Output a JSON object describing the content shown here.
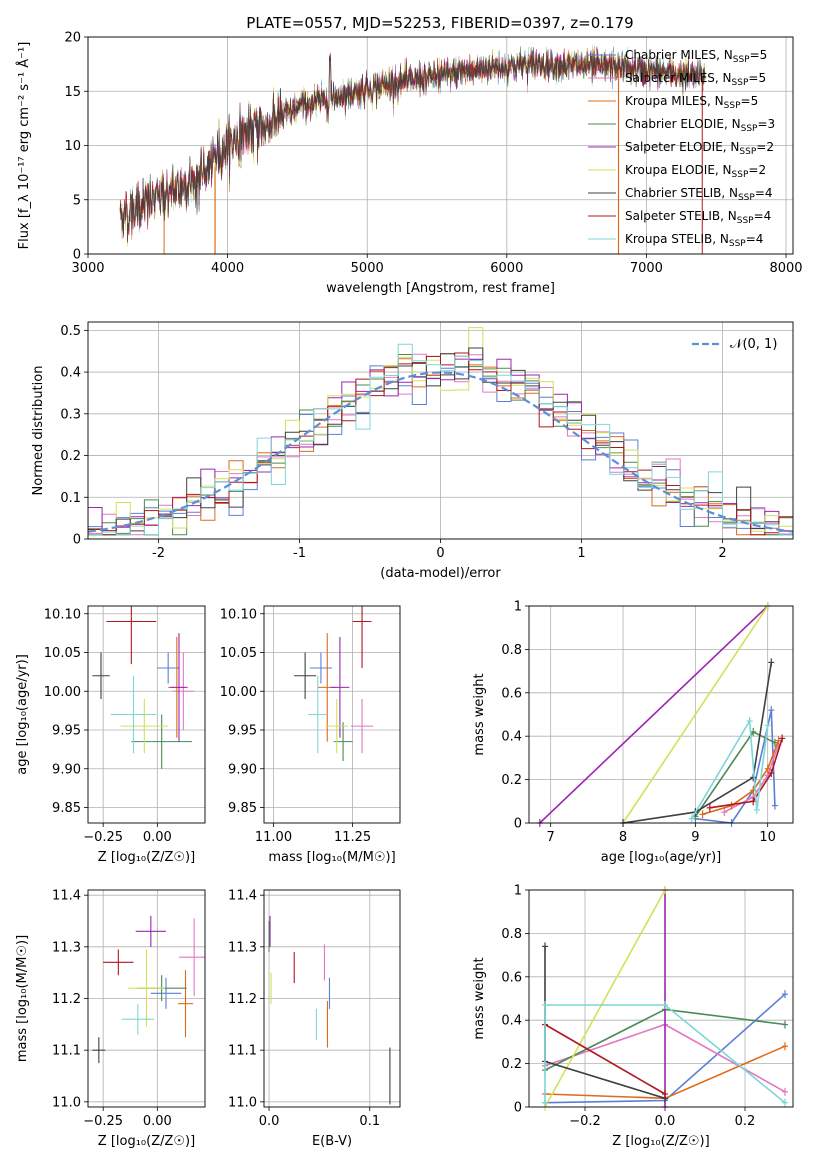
{
  "figure_title": "PLATE=0557, MJD=52253, FIBERID=0397, z=0.179",
  "colors": [
    "#5b7fd6",
    "#e377c2",
    "#dd6b1a",
    "#4a8a55",
    "#9b27b0",
    "#d4e157",
    "#404040",
    "#b0171f",
    "#7fd6d6"
  ],
  "chart_data": [
    {
      "id": "spectrum",
      "type": "line",
      "title": "PLATE=0557, MJD=52253, FIBERID=0397, z=0.179",
      "xlabel": "wavelength [Angstrom, rest frame]",
      "ylabel": "Flux [f_λ 10⁻¹⁷ erg cm⁻² s⁻¹ Å⁻¹]",
      "xlim": [
        3000,
        8050
      ],
      "ylim": [
        0,
        20
      ],
      "xticks": [
        3000,
        4000,
        5000,
        6000,
        7000,
        8000
      ],
      "yticks": [
        0,
        5,
        10,
        15,
        20
      ],
      "grid": true,
      "legend_position": "right",
      "data_range": [
        3230,
        7420
      ],
      "continuum_knots": [
        [
          3230,
          3.5
        ],
        [
          3400,
          4.5
        ],
        [
          3600,
          5.8
        ],
        [
          3800,
          7.0
        ],
        [
          3950,
          9.5
        ],
        [
          4100,
          11.0
        ],
        [
          4300,
          12.0
        ],
        [
          4500,
          13.5
        ],
        [
          4800,
          14.5
        ],
        [
          5000,
          15.2
        ],
        [
          5300,
          16.0
        ],
        [
          5600,
          16.6
        ],
        [
          5900,
          17.2
        ],
        [
          6200,
          17.5
        ],
        [
          6500,
          17.4
        ],
        [
          6800,
          17.2
        ],
        [
          7100,
          16.8
        ],
        [
          7420,
          16.3
        ]
      ],
      "series": [
        {
          "name": "Chabrier MILES, N_SSP=5",
          "label": "Chabrier MILES, N",
          "sub": "SSP",
          "tail": "=5"
        },
        {
          "name": "Salpeter MILES, N_SSP=5",
          "label": "Salpeter MILES, N",
          "sub": "SSP",
          "tail": "=5"
        },
        {
          "name": "Kroupa MILES, N_SSP=5",
          "label": "Kroupa MILES, N",
          "sub": "SSP",
          "tail": "=5"
        },
        {
          "name": "Chabrier ELODIE, N_SSP=3",
          "label": "Chabrier ELODIE, N",
          "sub": "SSP",
          "tail": "=3"
        },
        {
          "name": "Salpeter ELODIE, N_SSP=2",
          "label": "Salpeter ELODIE, N",
          "sub": "SSP",
          "tail": "=2"
        },
        {
          "name": "Kroupa ELODIE, N_SSP=2",
          "label": "Kroupa ELODIE, N",
          "sub": "SSP",
          "tail": "=2"
        },
        {
          "name": "Chabrier STELIB, N_SSP=4",
          "label": "Chabrier STELIB, N",
          "sub": "SSP",
          "tail": "=4"
        },
        {
          "name": "Salpeter STELIB, N_SSP=4",
          "label": "Salpeter STELIB, N",
          "sub": "SSP",
          "tail": "=4"
        },
        {
          "name": "Kroupa STELIB, N_SSP=4",
          "label": "Kroupa STELIB, N",
          "sub": "SSP",
          "tail": "=4"
        }
      ]
    },
    {
      "id": "residuals",
      "type": "histogram",
      "xlabel": "(data-model)/error",
      "ylabel": "Normed distribution",
      "xlim": [
        -2.5,
        2.5
      ],
      "ylim": [
        0,
        0.52
      ],
      "xticks": [
        -2,
        -1,
        0,
        1,
        2
      ],
      "yticks": [
        0.0,
        0.1,
        0.2,
        0.3,
        0.4,
        0.5
      ],
      "grid": true,
      "legend_position": "top-right",
      "reference_curve": {
        "name": "N(0,1)",
        "label": "𝒩(0, 1)",
        "mean": 0,
        "sigma": 1
      },
      "bin_width": 0.1
    },
    {
      "id": "age_vs_Z",
      "type": "errorbar",
      "xlabel": "Z [log₁₀(Z/Z☉)]",
      "ylabel": "age  [log₁₀(age/yr)]",
      "xlim": [
        -0.32,
        0.22
      ],
      "ylim": [
        9.83,
        10.11
      ],
      "xticks": [
        -0.25,
        0.0
      ],
      "xticklabels": [
        "−0.25",
        "0.00"
      ],
      "yticks": [
        9.85,
        9.9,
        9.95,
        10.0,
        10.05,
        10.1
      ],
      "yticklabels": [
        "9.85",
        "9.90",
        "9.95",
        "10.00",
        "10.05",
        "10.10"
      ],
      "grid": true,
      "points": [
        {
          "x": 0.05,
          "y": 10.03,
          "xerr": 0.1,
          "yerr": 0.04
        },
        {
          "x": 0.12,
          "y": 10.0,
          "xerr": 0.1,
          "yerr": 0.1
        },
        {
          "x": 0.09,
          "y": 10.005,
          "xerr": 0.08,
          "yerr": 0.13
        },
        {
          "x": 0.02,
          "y": 9.935,
          "xerr": 0.28,
          "yerr": 0.07
        },
        {
          "x": 0.1,
          "y": 10.005,
          "xerr": 0.08,
          "yerr": 0.14
        },
        {
          "x": -0.06,
          "y": 9.955,
          "xerr": 0.22,
          "yerr": 0.07
        },
        {
          "x": -0.26,
          "y": 10.02,
          "xerr": 0.08,
          "yerr": 0.06
        },
        {
          "x": -0.12,
          "y": 10.09,
          "xerr": 0.23,
          "yerr": 0.11
        },
        {
          "x": -0.11,
          "y": 9.97,
          "xerr": 0.21,
          "yerr": 0.1
        }
      ]
    },
    {
      "id": "age_vs_mass",
      "type": "errorbar",
      "xlabel": "mass [log₁₀(M/M☉)]",
      "ylabel": "",
      "xlim": [
        10.97,
        11.4
      ],
      "ylim": [
        9.83,
        10.11
      ],
      "xticks": [
        11.0,
        11.25
      ],
      "xticklabels": [
        "11.00",
        "11.25"
      ],
      "yticks": [
        9.85,
        9.9,
        9.95,
        10.0,
        10.05,
        10.1
      ],
      "yticklabels": [
        "9.85",
        "9.90",
        "9.95",
        "10.00",
        "10.05",
        "10.10"
      ],
      "grid": true,
      "points": [
        {
          "x": 11.15,
          "y": 10.03,
          "xerr": 0.07,
          "yerr": 0.04
        },
        {
          "x": 11.28,
          "y": 9.955,
          "xerr": 0.07,
          "yerr": 0.07
        },
        {
          "x": 11.17,
          "y": 10.005,
          "xerr": 0.06,
          "yerr": 0.14
        },
        {
          "x": 11.22,
          "y": 9.935,
          "xerr": 0.06,
          "yerr": 0.05
        },
        {
          "x": 11.21,
          "y": 10.005,
          "xerr": 0.06,
          "yerr": 0.13
        },
        {
          "x": 11.2,
          "y": 9.955,
          "xerr": 0.07,
          "yerr": 0.07
        },
        {
          "x": 11.1,
          "y": 10.02,
          "xerr": 0.07,
          "yerr": 0.06
        },
        {
          "x": 11.28,
          "y": 10.09,
          "xerr": 0.06,
          "yerr": 0.12
        },
        {
          "x": 11.14,
          "y": 9.97,
          "xerr": 0.06,
          "yerr": 0.1
        }
      ]
    },
    {
      "id": "age_mass_weight",
      "type": "line",
      "xlabel": "age  [log₁₀(age/yr)]",
      "ylabel": "mass weight",
      "xlim": [
        6.7,
        10.35
      ],
      "ylim": [
        0,
        1.0
      ],
      "xticks": [
        7,
        8,
        9,
        10
      ],
      "yticks": [
        0.0,
        0.2,
        0.4,
        0.6,
        0.8,
        1.0
      ],
      "grid": true,
      "series": [
        {
          "x": [
            9.0,
            9.5,
            9.8,
            10.05,
            10.1
          ],
          "y": [
            0.02,
            0.0,
            0.15,
            0.52,
            0.08
          ]
        },
        {
          "x": [
            9.4,
            9.8,
            10.0,
            10.15
          ],
          "y": [
            0.05,
            0.12,
            0.22,
            0.36
          ]
        },
        {
          "x": [
            9.1,
            9.5,
            9.8,
            10.0,
            10.15
          ],
          "y": [
            0.04,
            0.08,
            0.15,
            0.25,
            0.38
          ]
        },
        {
          "x": [
            9.0,
            9.8,
            10.1
          ],
          "y": [
            0.03,
            0.42,
            0.37
          ]
        },
        {
          "x": [
            6.85,
            10.0
          ],
          "y": [
            0.0,
            1.0
          ]
        },
        {
          "x": [
            8.0,
            10.0
          ],
          "y": [
            0.0,
            1.0
          ]
        },
        {
          "x": [
            8.0,
            9.0,
            9.8,
            10.05
          ],
          "y": [
            0.0,
            0.05,
            0.21,
            0.74
          ]
        },
        {
          "x": [
            9.2,
            9.8,
            10.05,
            10.2
          ],
          "y": [
            0.07,
            0.1,
            0.23,
            0.39
          ]
        },
        {
          "x": [
            8.95,
            9.75,
            9.85,
            10.0
          ],
          "y": [
            0.02,
            0.47,
            0.06,
            0.45
          ]
        }
      ]
    },
    {
      "id": "mass_vs_Z",
      "type": "errorbar",
      "xlabel": "Z [log₁₀(Z/Z☉)]",
      "ylabel": "mass [log₁₀(M/M☉)]",
      "xlim": [
        -0.32,
        0.22
      ],
      "ylim": [
        10.99,
        11.41
      ],
      "xticks": [
        -0.25,
        0.0
      ],
      "xticklabels": [
        "−0.25",
        "0.00"
      ],
      "yticks": [
        11.0,
        11.1,
        11.2,
        11.3,
        11.4
      ],
      "yticklabels": [
        "11.0",
        "11.1",
        "11.2",
        "11.3",
        "11.4"
      ],
      "grid": true,
      "points": [
        {
          "x": 0.04,
          "y": 11.21,
          "xerr": 0.14,
          "yerr": 0.06
        },
        {
          "x": 0.17,
          "y": 11.28,
          "xerr": 0.14,
          "yerr": 0.15
        },
        {
          "x": 0.13,
          "y": 11.19,
          "xerr": 0.07,
          "yerr": 0.13
        },
        {
          "x": 0.02,
          "y": 11.22,
          "xerr": 0.23,
          "yerr": 0.05
        },
        {
          "x": -0.03,
          "y": 11.33,
          "xerr": 0.14,
          "yerr": 0.06
        },
        {
          "x": -0.05,
          "y": 11.22,
          "xerr": 0.17,
          "yerr": 0.15
        },
        {
          "x": -0.27,
          "y": 11.1,
          "xerr": 0.06,
          "yerr": 0.05
        },
        {
          "x": -0.18,
          "y": 11.27,
          "xerr": 0.14,
          "yerr": 0.05
        },
        {
          "x": -0.09,
          "y": 11.16,
          "xerr": 0.15,
          "yerr": 0.06
        }
      ]
    },
    {
      "id": "mass_vs_EBV",
      "type": "errorbar",
      "xlabel": "E(B-V)",
      "ylabel": "",
      "xlim": [
        -0.005,
        0.13
      ],
      "ylim": [
        10.99,
        11.41
      ],
      "xticks": [
        0.0,
        0.1
      ],
      "xticklabels": [
        "0.0",
        "0.1"
      ],
      "yticks": [
        11.0,
        11.1,
        11.2,
        11.3,
        11.4
      ],
      "yticklabels": [
        "11.0",
        "11.1",
        "11.2",
        "11.3",
        "11.4"
      ],
      "grid": true,
      "points": [
        {
          "x": 0.06,
          "y": 11.21,
          "xerr": 0.0,
          "yerr": 0.06
        },
        {
          "x": 0.055,
          "y": 11.27,
          "xerr": 0.0,
          "yerr": 0.07
        },
        {
          "x": 0.058,
          "y": 11.15,
          "xerr": 0.0,
          "yerr": 0.09
        },
        {
          "x": 0.0,
          "y": 11.32,
          "xerr": 0.0,
          "yerr": 0.06
        },
        {
          "x": 0.001,
          "y": 11.33,
          "xerr": 0.0,
          "yerr": 0.06
        },
        {
          "x": 0.002,
          "y": 11.22,
          "xerr": 0.0,
          "yerr": 0.06
        },
        {
          "x": 0.12,
          "y": 11.05,
          "xerr": 0.0,
          "yerr": 0.11
        },
        {
          "x": 0.025,
          "y": 11.26,
          "xerr": 0.0,
          "yerr": 0.06
        },
        {
          "x": 0.047,
          "y": 11.15,
          "xerr": 0.0,
          "yerr": 0.06
        }
      ]
    },
    {
      "id": "Z_mass_weight",
      "type": "line",
      "xlabel": "Z [log₁₀(Z/Z☉)]",
      "ylabel": "mass weight",
      "xlim": [
        -0.34,
        0.32
      ],
      "ylim": [
        0,
        1.0
      ],
      "xticks": [
        -0.2,
        0.0,
        0.2
      ],
      "xticklabels": [
        "−0.2",
        "0.0",
        "0.2"
      ],
      "yticks": [
        0.0,
        0.2,
        0.4,
        0.6,
        0.8,
        1.0
      ],
      "grid": true,
      "series": [
        {
          "x": [
            -0.3,
            0.0,
            0.3
          ],
          "y": [
            0.02,
            0.03,
            0.52
          ]
        },
        {
          "x": [
            -0.3,
            0.0,
            0.3
          ],
          "y": [
            0.19,
            0.38,
            0.07
          ]
        },
        {
          "x": [
            -0.3,
            0.0,
            0.3
          ],
          "y": [
            0.06,
            0.04,
            0.28
          ]
        },
        {
          "x": [
            -0.3,
            0.0,
            0.3
          ],
          "y": [
            0.17,
            0.45,
            0.38
          ]
        },
        {
          "x": [
            0.0,
            0.0
          ],
          "y": [
            0.0,
            1.0
          ]
        },
        {
          "x": [
            -0.3,
            0.0
          ],
          "y": [
            0.0,
            1.0
          ]
        },
        {
          "x": [
            -0.3,
            -0.3,
            0.0
          ],
          "y": [
            0.74,
            0.21,
            0.04
          ]
        },
        {
          "x": [
            -0.3,
            0.0
          ],
          "y": [
            0.38,
            0.06
          ]
        },
        {
          "x": [
            -0.3,
            -0.3,
            0.0,
            0.3
          ],
          "y": [
            0.02,
            0.47,
            0.47,
            0.02
          ]
        }
      ]
    }
  ]
}
